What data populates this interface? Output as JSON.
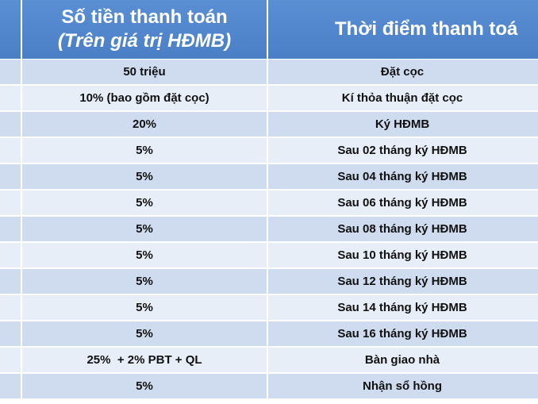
{
  "header": {
    "amount_line1": "Số tiền thanh toán",
    "amount_line2": "(Trên giá trị HĐMB)",
    "time_label": "Thời điểm thanh toá"
  },
  "rows": [
    {
      "amount": "50 triệu",
      "time": "Đặt cọc"
    },
    {
      "amount": "10% (bao gồm đặt cọc)",
      "time": "Kí thỏa thuận đặt cọc"
    },
    {
      "amount": "20%",
      "time": "Ký HĐMB"
    },
    {
      "amount": "5%",
      "time": "Sau 02 tháng ký HĐMB"
    },
    {
      "amount": "5%",
      "time": "Sau 04 tháng ký HĐMB"
    },
    {
      "amount": "5%",
      "time": "Sau 06 tháng ký HĐMB"
    },
    {
      "amount": "5%",
      "time": "Sau 08 tháng ký HĐMB"
    },
    {
      "amount": "5%",
      "time": "Sau 10 tháng ký HĐMB"
    },
    {
      "amount": "5%",
      "time": "Sau 12 tháng ký HĐMB"
    },
    {
      "amount": "5%",
      "time": "Sau 14 tháng ký HĐMB"
    },
    {
      "amount": "5%",
      "time": "Sau 16 tháng ký HĐMB"
    },
    {
      "amount": "25%  + 2% PBT + QL",
      "time": "Bàn giao nhà"
    },
    {
      "amount": "5%",
      "time": "Nhận sổ hồng"
    }
  ],
  "colors": {
    "header_bg": "#4f86cc",
    "row_dark": "#cfdcef",
    "row_light": "#e8eef7"
  }
}
